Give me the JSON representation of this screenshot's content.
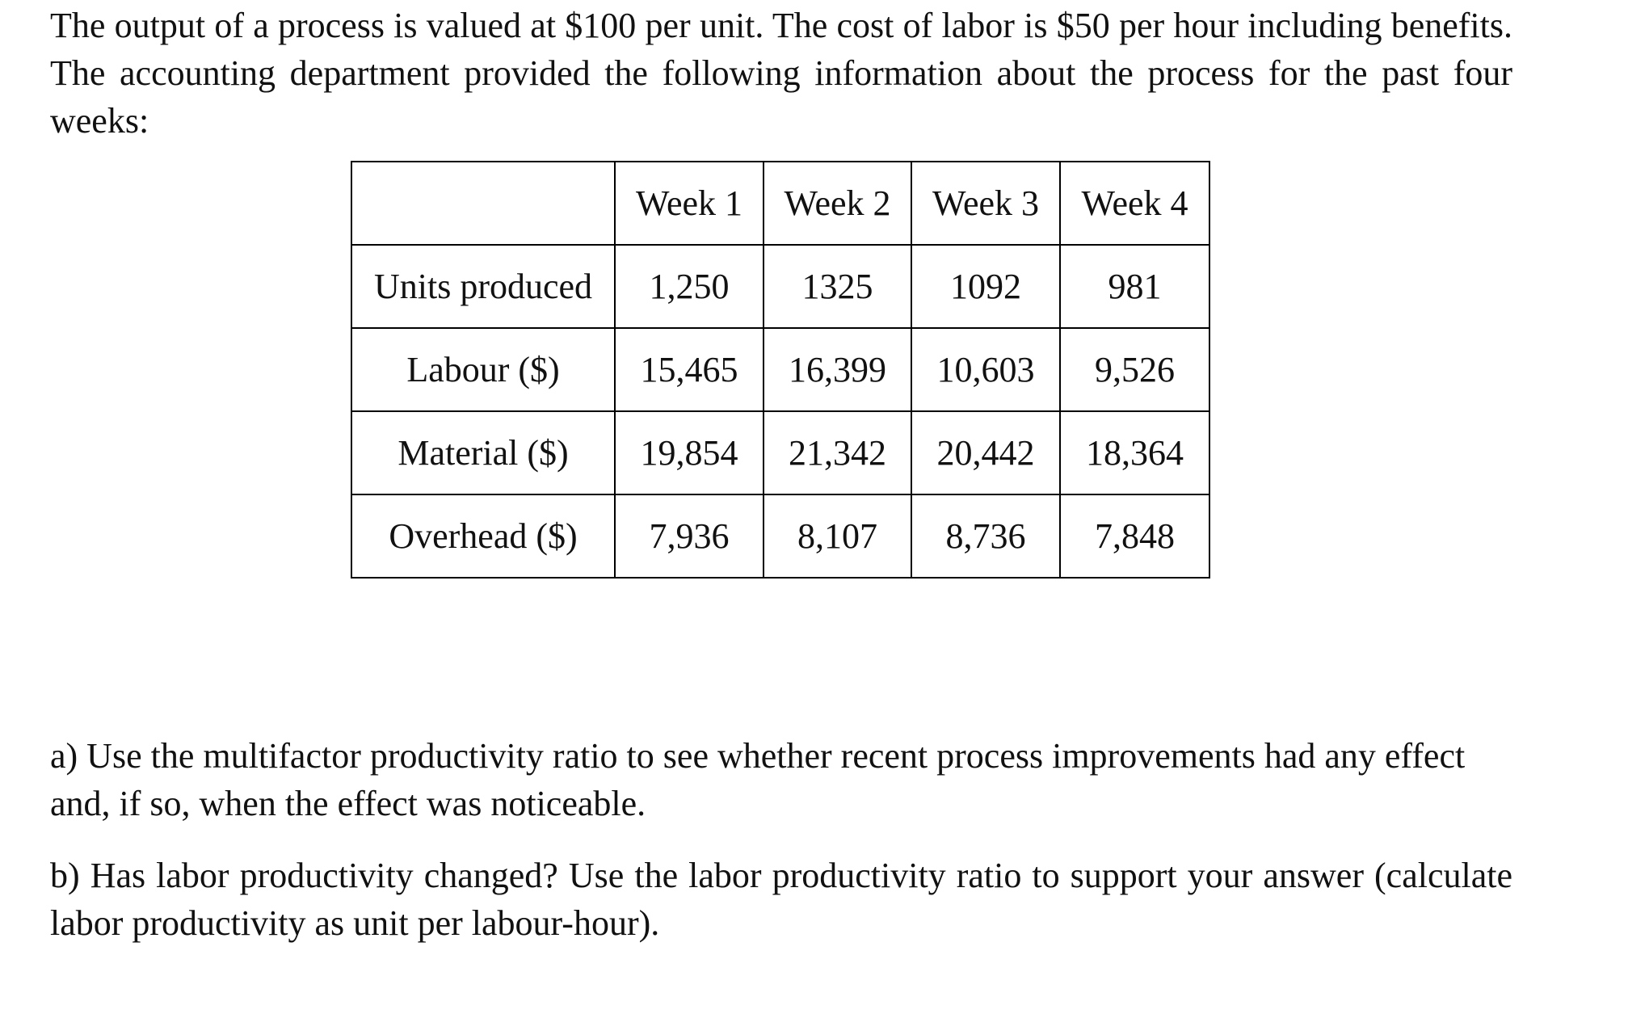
{
  "intro_text": "The output of a process is valued at $100 per unit. The cost of labor is $50 per hour including benefits. The accounting department provided the following information about the process for the past four weeks:",
  "table": {
    "header": [
      "",
      "Week 1",
      "Week 2",
      "Week 3",
      "Week 4"
    ],
    "rows": [
      {
        "label": "Units produced",
        "values": [
          "1,250",
          "1325",
          "1092",
          "981"
        ]
      },
      {
        "label": "Labour ($)",
        "values": [
          "15,465",
          "16,399",
          "10,603",
          "9,526"
        ]
      },
      {
        "label": "Material ($)",
        "values": [
          "19,854",
          "21,342",
          "20,442",
          "18,364"
        ]
      },
      {
        "label": "Overhead ($)",
        "values": [
          "7,936",
          "8,107",
          "8,736",
          "7,848"
        ]
      }
    ]
  },
  "question_a": "a) Use the multifactor productivity ratio to see whether recent process improvements had any effect and, if so, when the effect was noticeable.",
  "question_b": "b) Has labor productivity changed? Use the labor productivity ratio to support your answer (calculate labor productivity as unit per labour-hour)."
}
